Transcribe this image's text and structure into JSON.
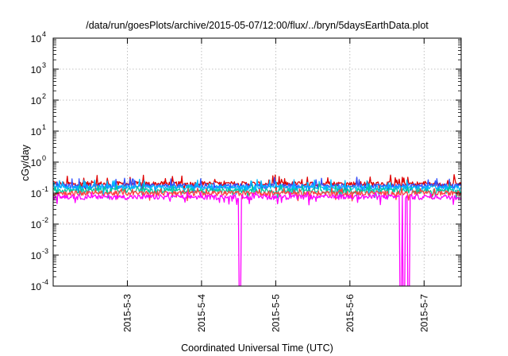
{
  "chart_data": {
    "type": "line",
    "title": "/data/run/goesPlots/archive/2015-05-07/12:00/flux/../bryn/5daysEarthData.plot",
    "xlabel": "Coordinated Universal Time (UTC)",
    "ylabel": "cGy/day",
    "yscale": "log",
    "ylim": [
      0.0001,
      10000
    ],
    "xlim": [
      "2015-05-02 00:00",
      "2015-05-07 12:00"
    ],
    "x_ticks": [
      "2015-5-3",
      "2015-5-4",
      "2015-5-5",
      "2015-5-6",
      "2015-5-7"
    ],
    "y_ticks": [
      {
        "base": "10",
        "exp": "-4"
      },
      {
        "base": "10",
        "exp": "-3"
      },
      {
        "base": "10",
        "exp": "-2"
      },
      {
        "base": "10",
        "exp": "-1"
      },
      {
        "base": "10",
        "exp": "0"
      },
      {
        "base": "10",
        "exp": "1"
      },
      {
        "base": "10",
        "exp": "2"
      },
      {
        "base": "10",
        "exp": "3"
      },
      {
        "base": "10",
        "exp": "4"
      }
    ],
    "grid": true,
    "series": [
      {
        "color": "#e00000",
        "typical": 0.2,
        "spike": 0.4
      },
      {
        "color": "#3050ff",
        "typical": 0.17,
        "spike": 0.33
      },
      {
        "color": "#00b8ff",
        "typical": 0.15,
        "spike": 0.28
      },
      {
        "color": "#00c8a0",
        "typical": 0.12,
        "spike": 0.2
      },
      {
        "color": "#ff4040",
        "typical": 0.1,
        "spike": 0.15
      },
      {
        "color": "#ff00ff",
        "typical": 0.075,
        "spike": 0.11,
        "dropouts": [
          "2015-05-04 12:30",
          "2015-05-06 16:30",
          "2015-05-06 17:30",
          "2015-05-06 19:00"
        ]
      }
    ]
  }
}
